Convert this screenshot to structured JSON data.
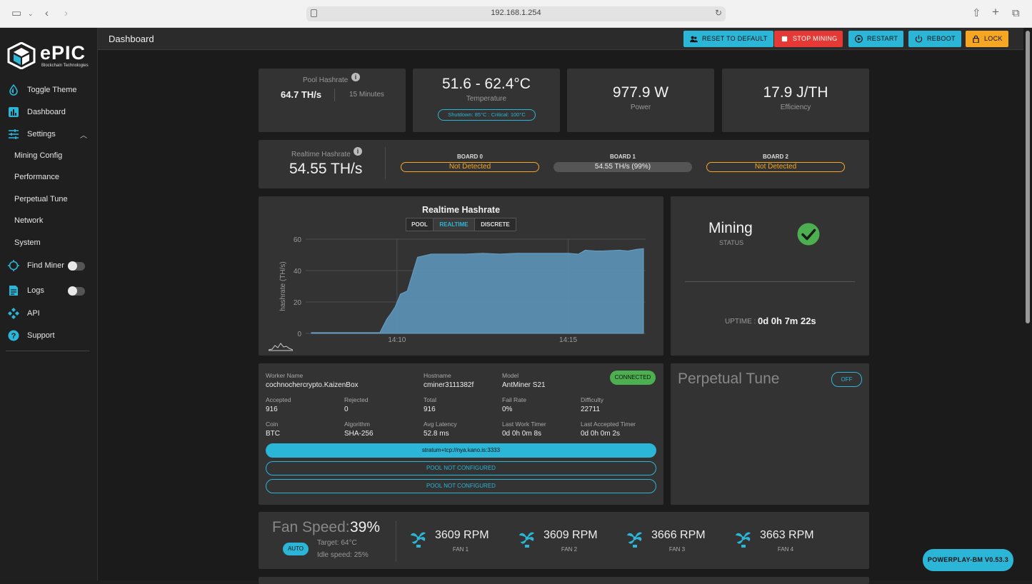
{
  "browser": {
    "url": "192.168.1.254"
  },
  "brand": {
    "name": "ePIC",
    "tagline": "Blockchain Technologies"
  },
  "sidebar": {
    "items": [
      {
        "label": "Toggle Theme"
      },
      {
        "label": "Dashboard"
      },
      {
        "label": "Settings"
      },
      {
        "label": "Mining Config"
      },
      {
        "label": "Performance"
      },
      {
        "label": "Perpetual Tune"
      },
      {
        "label": "Network"
      },
      {
        "label": "System"
      },
      {
        "label": "Find Miner"
      },
      {
        "label": "Logs"
      },
      {
        "label": "API"
      },
      {
        "label": "Support"
      }
    ]
  },
  "header": {
    "title": "Dashboard",
    "buttons": {
      "reset": "RESET TO DEFAULT",
      "stop": "STOP MINING",
      "restart": "RESTART",
      "reboot": "REBOOT",
      "lock": "LOCK"
    }
  },
  "stats": {
    "pool_hashrate_label": "Pool Hashrate",
    "pool_hashrate_value": "64.7 TH/s",
    "pool_hashrate_window": "15 Minutes",
    "temperature_value": "51.6 - 62.4°C",
    "temperature_label": "Temperature",
    "temperature_limits": "Shutdown: 85°C : Critical: 100°C",
    "power_value": "977.9 W",
    "power_label": "Power",
    "efficiency_value": "17.9 J/TH",
    "efficiency_label": "Efficiency"
  },
  "realtime": {
    "label": "Realtime Hashrate",
    "value": "54.55 TH/s",
    "boards": [
      {
        "name": "BOARD 0",
        "status": "Not Detected"
      },
      {
        "name": "BOARD 1",
        "status": "54.55 TH/s (99%)"
      },
      {
        "name": "BOARD 2",
        "status": "Not Detected"
      }
    ]
  },
  "chart": {
    "tabs": [
      "POOL",
      "REALTIME",
      "DISCRETE"
    ],
    "active_tab": "REALTIME"
  },
  "chart_data": {
    "type": "area",
    "title": "Realtime Hashrate",
    "ylabel": "hashrate (TH/s)",
    "xlabel": "",
    "ylim": [
      0,
      60
    ],
    "yticks": [
      0,
      20,
      40,
      60
    ],
    "xticks": [
      "14:10",
      "14:15"
    ],
    "x_minutes": [
      0,
      1.5,
      2.2,
      2.8,
      3.4,
      4.0,
      4.4,
      4.6,
      4.9,
      5.2,
      5.6,
      6.2,
      7.0,
      8.0,
      9.0,
      10.0,
      11.0,
      12.0,
      13.0,
      14.0,
      15.0,
      15.6,
      16.0,
      16.6,
      17.0,
      18.0,
      18.5,
      19.0,
      19.4
    ],
    "values": [
      0.5,
      0.5,
      0.5,
      0.5,
      0.5,
      0.5,
      9,
      12,
      17,
      25,
      27,
      48.5,
      50.5,
      50.5,
      50.5,
      51,
      50.5,
      51,
      51,
      51,
      51,
      50.5,
      53,
      52.5,
      52.5,
      53,
      52.5,
      53.5,
      54
    ],
    "series": [
      {
        "name": "",
        "color": "#5b8fb3"
      }
    ],
    "grid": true
  },
  "status_card": {
    "title": "Mining",
    "subtitle": "STATUS",
    "uptime_label": "UPTIME :",
    "uptime_value": "0d 0h 7m 22s"
  },
  "worker": {
    "connection": "CONNECTED",
    "fields": {
      "worker_name_label": "Worker Name",
      "worker_name": "cochnochercrypto.KaizenBox",
      "hostname_label": "Hostname",
      "hostname": "cminer3111382f",
      "model_label": "Model",
      "model": "AntMiner S21",
      "accepted_label": "Accepted",
      "accepted": "916",
      "rejected_label": "Rejected",
      "rejected": "0",
      "total_label": "Total",
      "total": "916",
      "fail_rate_label": "Fail Rate",
      "fail_rate": "0%",
      "difficulty_label": "Difficulty",
      "difficulty": "22711",
      "coin_label": "Coin",
      "coin": "BTC",
      "algorithm_label": "Algorithm",
      "algorithm": "SHA-256",
      "latency_label": "Avg Latency",
      "latency": "52.8 ms",
      "last_work_label": "Last Work Timer",
      "last_work": "0d 0h 0m 8s",
      "last_accepted_label": "Last Accepted Timer",
      "last_accepted": "0d 0h 0m 2s"
    },
    "pools": [
      "stratum+tcp://nya.kano.is:3333",
      "POOL NOT CONFIGURED",
      "POOL NOT CONFIGURED"
    ]
  },
  "perpetual_tune": {
    "title": "Perpetual Tune",
    "state": "OFF"
  },
  "fans": {
    "label": "Fan Speed:",
    "percent": "39%",
    "mode": "AUTO",
    "target": "Target: 64°C",
    "idle": "Idle speed: 25%",
    "items": [
      {
        "rpm": "3609 RPM",
        "name": "FAN 1"
      },
      {
        "rpm": "3609 RPM",
        "name": "FAN 2"
      },
      {
        "rpm": "3666 RPM",
        "name": "FAN 3"
      },
      {
        "rpm": "3663 RPM",
        "name": "FAN 4"
      }
    ]
  },
  "version": "POWERPLAY-BM V0.53.3",
  "colors": {
    "accent": "#2bb5d6",
    "danger": "#e53935",
    "warning": "#f5a623",
    "success": "#4caf50",
    "chart_fill": "#5b8fb3"
  }
}
